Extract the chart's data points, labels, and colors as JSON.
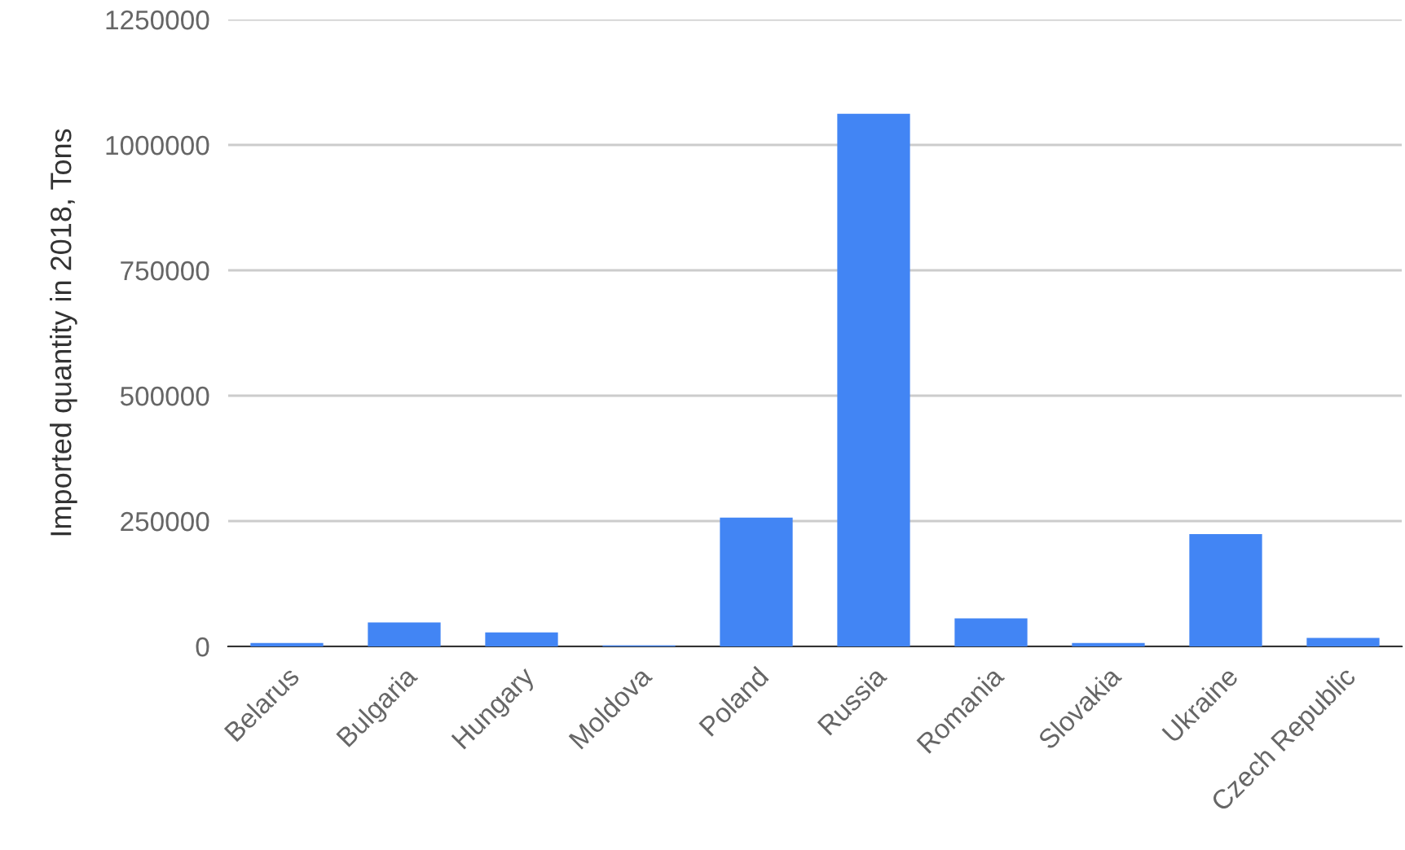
{
  "chart_data": {
    "type": "bar",
    "ylabel": "Imported quantity in 2018, Tons",
    "categories": [
      "Belarus",
      "Bulgaria",
      "Hungary",
      "Moldova",
      "Poland",
      "Russia",
      "Romania",
      "Slovakia",
      "Ukraine",
      "Czech Republic"
    ],
    "values": [
      7000,
      48000,
      28000,
      2000,
      257000,
      1062000,
      56000,
      7000,
      224000,
      17000
    ],
    "color": "#4285f4",
    "ylim": [
      0,
      1250000
    ],
    "yticks": [
      0,
      250000,
      500000,
      750000,
      1000000,
      1250000
    ],
    "grid": "y"
  }
}
